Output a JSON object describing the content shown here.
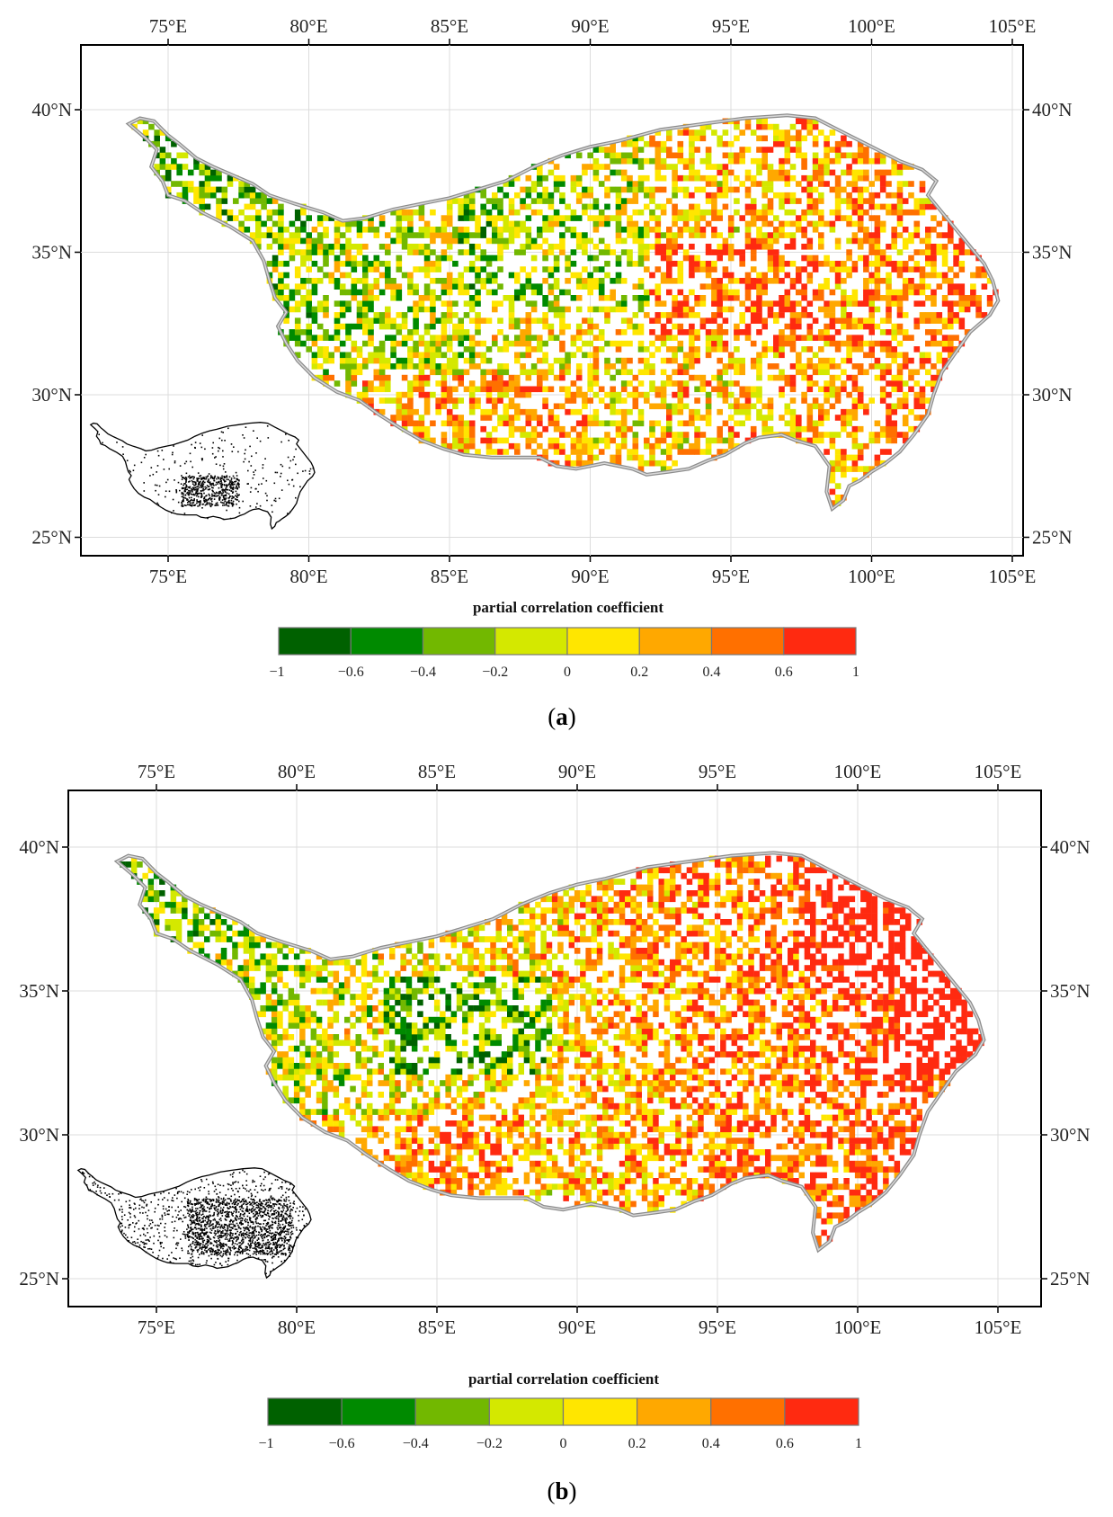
{
  "panels": [
    {
      "id": "a",
      "caption_open": "(",
      "caption_letter": "a",
      "caption_close": ")",
      "colorbar_title": "partial correlation coefficient",
      "seed": 7,
      "variant": "a"
    },
    {
      "id": "b",
      "caption_open": "(",
      "caption_letter": "b",
      "caption_close": ")",
      "colorbar_title": "partial correlation coefficient",
      "seed": 19,
      "variant": "b"
    }
  ],
  "x_tick_labels": [
    "75°E",
    "80°E",
    "85°E",
    "90°E",
    "95°E",
    "100°E",
    "105°E"
  ],
  "y_tick_labels": [
    "40°N",
    "35°N",
    "30°N",
    "25°N"
  ],
  "colorbar": {
    "labels": [
      "−1",
      "−0.6",
      "−0.4",
      "−0.2",
      "0",
      "0.2",
      "0.4",
      "0.6",
      "1"
    ],
    "colors": [
      "#006100",
      "#008a00",
      "#72b800",
      "#d4e800",
      "#ffe600",
      "#ffa800",
      "#ff7000",
      "#ff2a10"
    ]
  },
  "chart_data": [
    {
      "type": "heatmap",
      "panel": "a",
      "title": "",
      "legend_title": "partial correlation coefficient",
      "legend_class_breaks": [
        -1,
        -0.6,
        -0.4,
        -0.2,
        0,
        0.2,
        0.4,
        0.6,
        1
      ],
      "x_axis_ticks": [
        "75°E",
        "80°E",
        "85°E",
        "90°E",
        "95°E",
        "100°E",
        "105°E"
      ],
      "y_axis_ticks": [
        "40°N",
        "35°N",
        "30°N",
        "25°N"
      ],
      "xlim": [
        72,
        106
      ],
      "ylim": [
        24.3,
        42
      ],
      "grid": true,
      "inset": "significance map (black)"
    },
    {
      "type": "heatmap",
      "panel": "b",
      "title": "",
      "legend_title": "partial correlation coefficient",
      "legend_class_breaks": [
        -1,
        -0.6,
        -0.4,
        -0.2,
        0,
        0.2,
        0.4,
        0.6,
        1
      ],
      "x_axis_ticks": [
        "75°E",
        "80°E",
        "85°E",
        "90°E",
        "95°E",
        "100°E",
        "105°E"
      ],
      "y_axis_ticks": [
        "40°N",
        "35°N",
        "30°N",
        "25°N"
      ],
      "xlim": [
        72,
        106
      ],
      "ylim": [
        24.3,
        42
      ],
      "grid": true,
      "inset": "significance map (black)"
    }
  ]
}
